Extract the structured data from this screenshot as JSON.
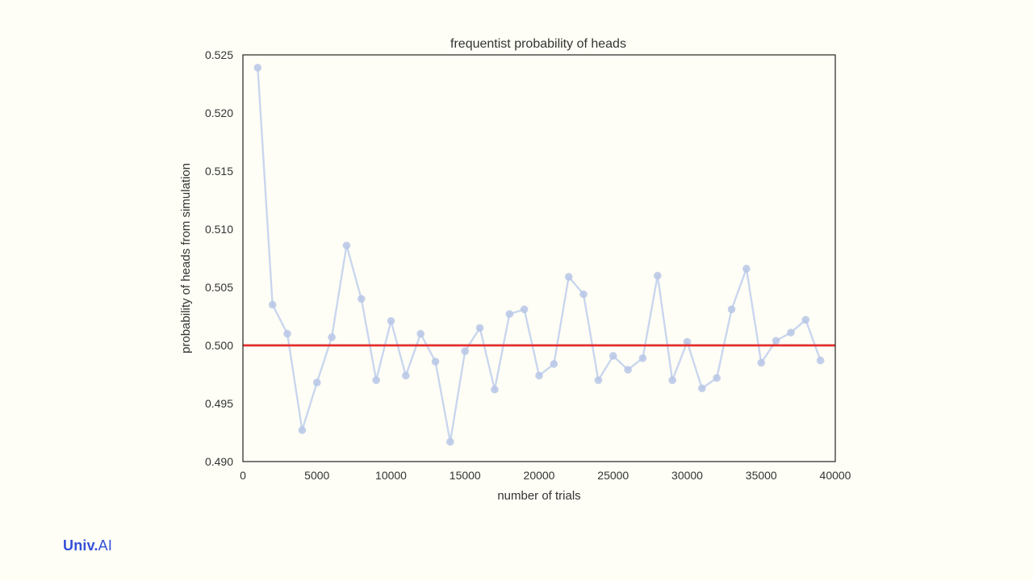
{
  "logo": {
    "brand": "Univ.",
    "suffix": "AI"
  },
  "colors": {
    "background": "#fefef6",
    "series_line": "#c9d6ee",
    "series_marker": "#b9c7e6",
    "reference_line": "#e32d2d",
    "axes_frame": "#222222",
    "logo": "#3450d8"
  },
  "chart_data": {
    "type": "line",
    "title": "frequentist probability of heads",
    "xlabel": "number of trials",
    "ylabel": "probability of heads from simulation",
    "xlim": [
      0,
      40000
    ],
    "ylim": [
      0.49,
      0.525
    ],
    "xticks": [
      "0",
      "5000",
      "10000",
      "15000",
      "20000",
      "25000",
      "30000",
      "35000",
      "40000"
    ],
    "yticks": [
      "0.490",
      "0.495",
      "0.500",
      "0.505",
      "0.510",
      "0.515",
      "0.520",
      "0.525"
    ],
    "grid": false,
    "legend": false,
    "reference_line": {
      "y": 0.5
    },
    "series": [
      {
        "x": [
          1000,
          2000,
          3000,
          4000,
          5000,
          6000,
          7000,
          8000,
          9000,
          10000,
          11000,
          12000,
          13000,
          14000,
          15000,
          16000,
          17000,
          18000,
          19000,
          20000,
          21000,
          22000,
          23000,
          24000,
          25000,
          26000,
          27000,
          28000,
          29000,
          30000,
          31000,
          32000,
          33000,
          34000,
          35000,
          36000,
          37000,
          38000,
          39000
        ],
        "values": [
          0.5239,
          0.5035,
          0.501,
          0.4927,
          0.4968,
          0.5007,
          0.5086,
          0.504,
          0.497,
          0.5021,
          0.4974,
          0.501,
          0.4986,
          0.4917,
          0.4995,
          0.5015,
          0.4962,
          0.5027,
          0.5031,
          0.4974,
          0.4984,
          0.5059,
          0.5044,
          0.497,
          0.4991,
          0.4979,
          0.4989,
          0.506,
          0.497,
          0.5003,
          0.4963,
          0.4972,
          0.5031,
          0.5066,
          0.4985,
          0.5004,
          0.5011,
          0.5022,
          0.4987
        ]
      }
    ]
  }
}
